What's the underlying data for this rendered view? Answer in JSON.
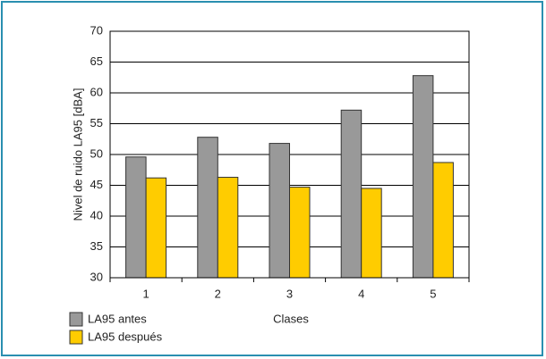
{
  "chart_data": {
    "type": "bar",
    "categories": [
      "1",
      "2",
      "3",
      "4",
      "5"
    ],
    "series": [
      {
        "name": "LA95 antes",
        "color": "#999999",
        "values": [
          49.6,
          52.8,
          51.8,
          57.2,
          62.8
        ]
      },
      {
        "name": "LA95 después",
        "color": "#ffcc00",
        "values": [
          46.2,
          46.3,
          44.7,
          44.5,
          48.7
        ]
      }
    ],
    "ylim": [
      30,
      70
    ],
    "yticks": [
      30,
      35,
      40,
      45,
      50,
      55,
      60,
      65,
      70
    ],
    "ylabel": "Nivel de ruido LA95 [dBA]",
    "xlabel": "Clases",
    "grid": true,
    "legend": "bottom-left"
  }
}
